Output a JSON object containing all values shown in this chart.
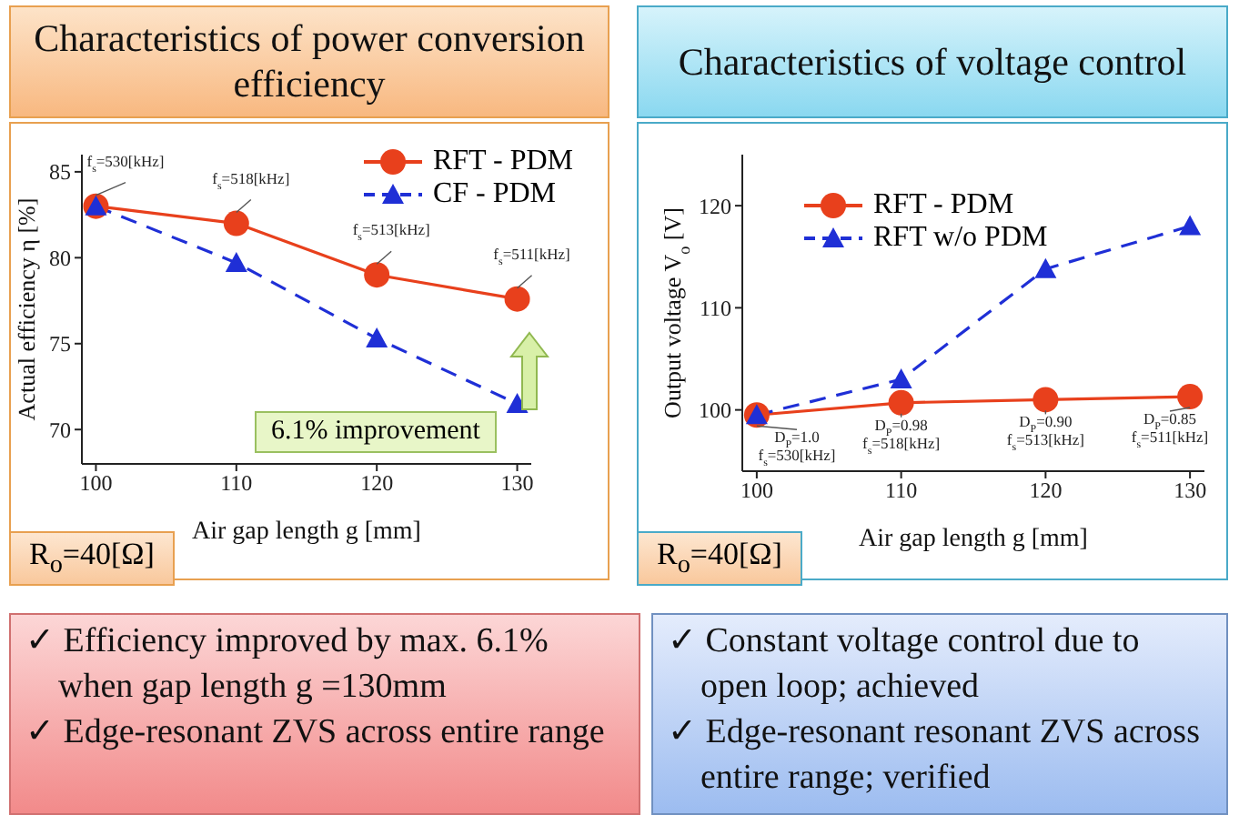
{
  "chart_data": [
    {
      "type": "line",
      "title": "Characteristics of power conversion efficiency",
      "xlabel": "Air gap length g [mm]",
      "ylabel": "Actual efficiency η [%]",
      "x": [
        100,
        110,
        120,
        130
      ],
      "xlim": [
        99,
        131
      ],
      "xticks": [
        100,
        110,
        120,
        130
      ],
      "ylim": [
        68,
        86
      ],
      "yticks": [
        70,
        75,
        80,
        85
      ],
      "legend": "top right",
      "grid": false,
      "series": [
        {
          "name": "RFT - PDM",
          "color": "#e8401c",
          "values": [
            83,
            82,
            79,
            77.6
          ],
          "marker": "circle",
          "line_style": "solid"
        },
        {
          "name": "CF - PDM",
          "color": "#1f2fd6",
          "values": [
            83,
            79.7,
            75.3,
            71.5
          ],
          "marker": "triangle",
          "line_style": "dashed"
        }
      ],
      "annotations": [
        {
          "text": "f$_{s}$=530[kHz]",
          "x": 100,
          "y": 83
        },
        {
          "text": "f$_{s}$=518[kHz]",
          "x": 110,
          "y": 82
        },
        {
          "text": "f$_{s}$=513[kHz]",
          "x": 120,
          "y": 79
        },
        {
          "text": "f$_{s}$=511[kHz]",
          "x": 130,
          "y": 77.6
        },
        "6.1% improvement",
        "R$_{o}$=40[Ω]"
      ]
    },
    {
      "type": "line",
      "title": "Characteristics of voltage control",
      "xlabel": "Air gap length g [mm]",
      "ylabel": "Output voltage V$_{o}$ [V]",
      "x": [
        100,
        110,
        120,
        130
      ],
      "xlim": [
        99,
        131
      ],
      "xticks": [
        100,
        110,
        120,
        130
      ],
      "ylim": [
        94,
        125
      ],
      "yticks": [
        100,
        110,
        120
      ],
      "legend": "top left",
      "grid": false,
      "series": [
        {
          "name": "RFT - PDM",
          "color": "#e8401c",
          "values": [
            99.5,
            100.7,
            101,
            101.3
          ],
          "marker": "circle",
          "line_style": "solid"
        },
        {
          "name": "RFT w/o PDM",
          "color": "#1f2fd6",
          "values": [
            99.5,
            103,
            113.8,
            118
          ],
          "marker": "triangle",
          "line_style": "dashed"
        }
      ],
      "annotations": [
        {
          "text": "D$_{P}$=1.0",
          "x": 100,
          "y": 99.5
        },
        {
          "text": "f$_{s}$=530[kHz]",
          "x": 100,
          "y": 99.5
        },
        {
          "text": "D$_{P}$=0.98",
          "x": 110,
          "y": 100.7
        },
        {
          "text": "f$_{s}$=518[kHz]",
          "x": 110,
          "y": 100.7
        },
        {
          "text": "D$_{P}$=0.90",
          "x": 120,
          "y": 101
        },
        {
          "text": "f$_{s}$=513[kHz]",
          "x": 120,
          "y": 101
        },
        {
          "text": "D$_{P}$=0.85",
          "x": 130,
          "y": 101.3
        },
        {
          "text": "f$_{s}$=511[kHz]",
          "x": 130,
          "y": 101.3
        },
        "R$_{o}$=40[Ω]"
      ]
    },
    {
      "type": "other",
      "annotations": [
        "✓ Efficiency improved by max. 6.1% when gap length g =130mm",
        "✓ Edge-resonant ZVS across entire range"
      ]
    },
    {
      "type": "other",
      "annotations": [
        "✓ Constant voltage control due to open loop; achieved",
        "✓ Edge-resonant resonant ZVS across entire range; verified"
      ]
    }
  ]
}
